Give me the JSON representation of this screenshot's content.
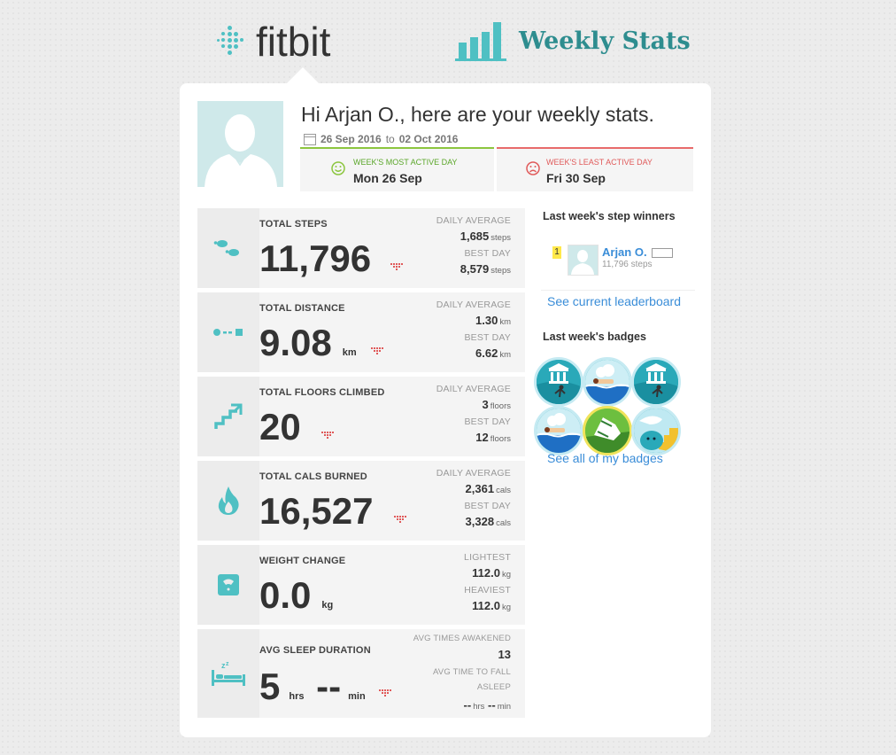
{
  "header": {
    "brand": "fitbit",
    "title": "Weekly Stats"
  },
  "user": {
    "greeting": "Hi Arjan O., here are your weekly stats.",
    "date_start": "26 Sep 2016",
    "date_to": "to",
    "date_end": "02 Oct 2016",
    "most_active": {
      "label": "WEEK'S MOST ACTIVE DAY",
      "day": "Mon 26 Sep"
    },
    "least_active": {
      "label": "WEEK'S LEAST ACTIVE DAY",
      "day": "Fri 30 Sep"
    }
  },
  "stats": [
    {
      "label": "TOTAL STEPS",
      "value": "11,796",
      "unit": "",
      "icon": "footprints-icon",
      "r1_label": "DAILY AVERAGE",
      "r1_value": "1,685",
      "r1_unit": "steps",
      "r2_label": "BEST DAY",
      "r2_value": "8,579",
      "r2_unit": "steps"
    },
    {
      "label": "TOTAL DISTANCE",
      "value": "9.08",
      "unit": "km",
      "icon": "distance-icon",
      "r1_label": "DAILY AVERAGE",
      "r1_value": "1.30",
      "r1_unit": "km",
      "r2_label": "BEST DAY",
      "r2_value": "6.62",
      "r2_unit": "km"
    },
    {
      "label": "TOTAL FLOORS CLIMBED",
      "value": "20",
      "unit": "",
      "icon": "stairs-icon",
      "r1_label": "DAILY AVERAGE",
      "r1_value": "3",
      "r1_unit": "floors",
      "r2_label": "BEST DAY",
      "r2_value": "12",
      "r2_unit": "floors"
    },
    {
      "label": "TOTAL CALS BURNED",
      "value": "16,527",
      "unit": "",
      "icon": "flame-icon",
      "r1_label": "DAILY AVERAGE",
      "r1_value": "2,361",
      "r1_unit": "cals",
      "r2_label": "BEST DAY",
      "r2_value": "3,328",
      "r2_unit": "cals"
    },
    {
      "label": "WEIGHT CHANGE",
      "value": "0.0",
      "unit": "kg",
      "icon": "scale-icon",
      "r1_label": "LIGHTEST",
      "r1_value": "112.0",
      "r1_unit": "kg",
      "r2_label": "HEAVIEST",
      "r2_value": "112.0",
      "r2_unit": "kg"
    }
  ],
  "sleep": {
    "label": "AVG SLEEP DURATION",
    "hours": "5",
    "hours_unit": "hrs",
    "minutes": "--",
    "minutes_unit": "min",
    "icon": "bed-icon",
    "r1_label": "AVG TIMES AWAKENED",
    "r1_value": "13",
    "r2_label_line1": "AVG TIME TO FALL",
    "r2_label_line2": "ASLEEP",
    "r2_hrs": "--",
    "r2_hrs_unit": "hrs",
    "r2_min": "--",
    "r2_min_unit": "min"
  },
  "sidebar": {
    "winners_title": "Last week's step winners",
    "winner_rank": "1",
    "winner_name": "Arjan O.",
    "winner_steps": "11,796 steps",
    "leaderboard_link": "See current leaderboard",
    "badges_title": "Last week's badges",
    "badges_link": "See all of my badges"
  },
  "colors": {
    "teal": "#4fc0c3",
    "heading_teal": "#2e8d8f",
    "link_blue": "#3a8dd8",
    "good_green": "#8cc63f",
    "bad_red": "#e86b6b"
  }
}
